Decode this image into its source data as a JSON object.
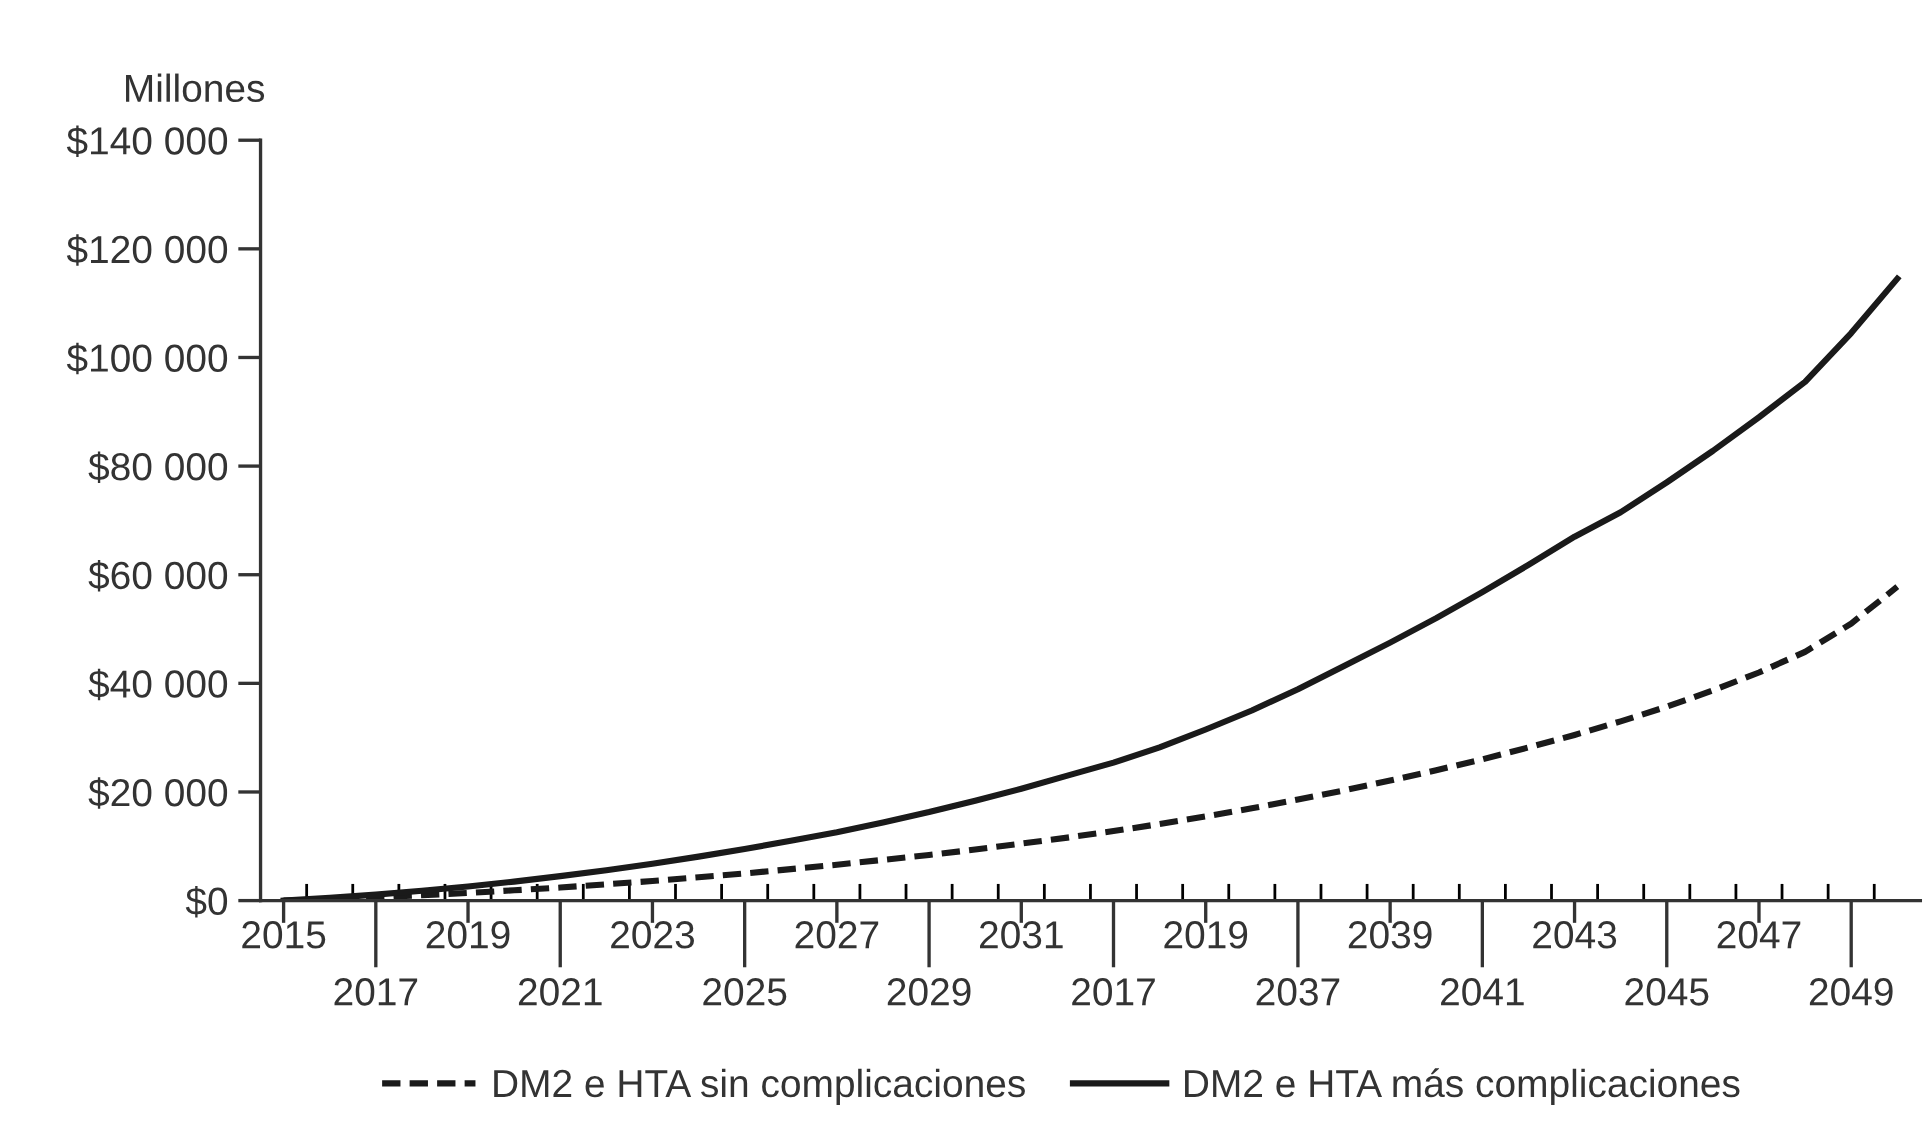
{
  "chart_data": {
    "type": "line",
    "ylabel": "Millones",
    "categories": [
      "2015",
      null,
      "2017",
      null,
      "2019",
      null,
      "2021",
      null,
      "2023",
      null,
      "2025",
      null,
      "2027",
      null,
      "2029",
      null,
      "2031",
      null,
      "2017",
      null,
      "2019",
      null,
      "2037",
      null,
      "2039",
      null,
      "2041",
      null,
      "2043",
      null,
      "2045",
      null,
      "2047",
      null,
      "2049",
      null
    ],
    "series": [
      {
        "name": "DM2 e HTA sin complicaciones",
        "color": "#1a1a1a",
        "line_style": "dashed",
        "values": [
          0,
          300,
          600,
          1000,
          1400,
          1900,
          2400,
          3000,
          3600,
          4300,
          5000,
          5800,
          6600,
          7500,
          8400,
          9400,
          10500,
          11600,
          12800,
          14100,
          15500,
          17000,
          18600,
          20300,
          22100,
          24000,
          26000,
          28200,
          30500,
          33000,
          35700,
          38700,
          42000,
          45800,
          51000,
          57800
        ]
      },
      {
        "name": "DM2 e HTA más complicaciones",
        "color": "#1a1a1a",
        "line_style": "solid",
        "values": [
          0,
          500,
          1100,
          1800,
          2600,
          3500,
          4500,
          5600,
          6800,
          8100,
          9500,
          11000,
          12600,
          14400,
          16300,
          18400,
          20600,
          23000,
          25400,
          28200,
          31500,
          35000,
          38900,
          43200,
          47500,
          52000,
          56800,
          61800,
          67000,
          71500,
          77000,
          82800,
          89000,
          95500,
          104500,
          114500
        ]
      }
    ],
    "ylim": [
      0,
      140000
    ],
    "yticks": [
      {
        "value": 0,
        "label": "$0"
      },
      {
        "value": 20000,
        "label": "$20 000"
      },
      {
        "value": 40000,
        "label": "$40 000"
      },
      {
        "value": 60000,
        "label": "$60 000"
      },
      {
        "value": 80000,
        "label": "$80 000"
      },
      {
        "value": 100000,
        "label": "$100 000"
      },
      {
        "value": 120000,
        "label": "$120 000"
      },
      {
        "value": 140000,
        "label": "$140 000"
      }
    ],
    "grid": false,
    "legend": "bottom"
  }
}
